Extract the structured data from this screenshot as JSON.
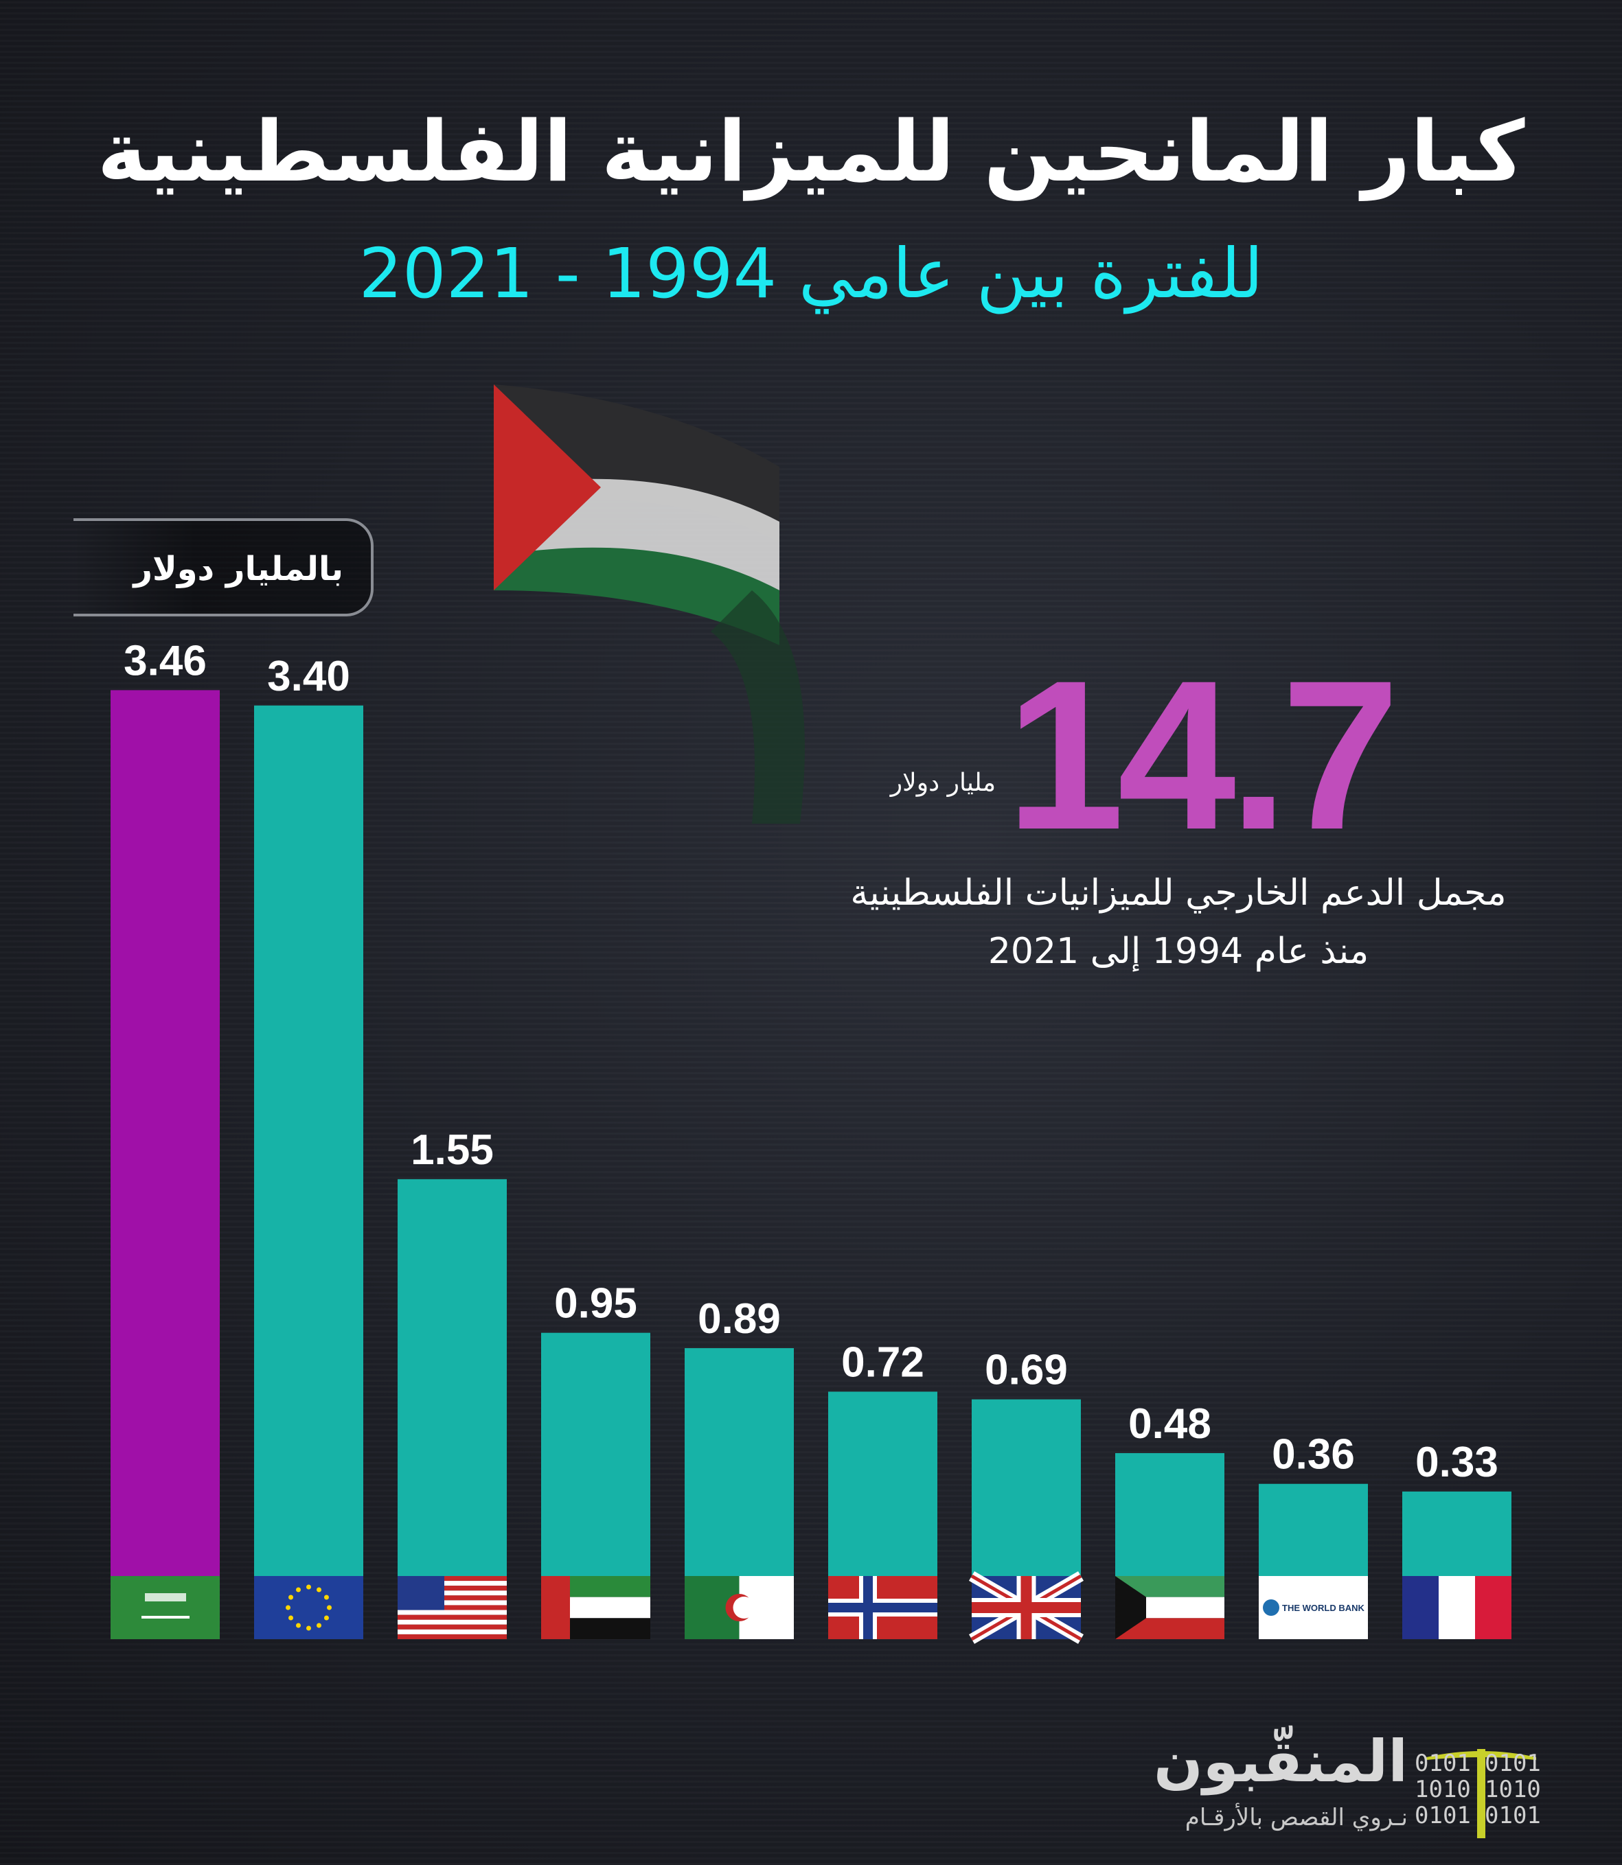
{
  "header": {
    "title": "كبار المانحين للميزانية الفلسطينية",
    "subtitle": "للفترة بين عامي 1994 - 2021"
  },
  "unit_label": "بالمليار دولار",
  "highlight": {
    "value": "14.7",
    "unit": "مليار دولار",
    "caption_line1": "مجمل الدعم الخارجي للميزانيات الفلسطينية",
    "caption_line2": "منذ عام 1994 إلى 2021",
    "color": "#c04dbb"
  },
  "chart_data": {
    "type": "bar",
    "values": [
      3.46,
      3.4,
      1.55,
      0.95,
      0.89,
      0.72,
      0.69,
      0.48,
      0.36,
      0.33
    ],
    "labels": [
      "3.46",
      "3.40",
      "1.55",
      "0.95",
      "0.89",
      "0.72",
      "0.69",
      "0.48",
      "0.36",
      "0.33"
    ],
    "flags": [
      "saudi-arabia-flag-icon",
      "eu-flag-icon",
      "usa-flag-icon",
      "uae-flag-icon",
      "algeria-flag-icon",
      "norway-flag-icon",
      "uk-flag-icon",
      "kuwait-flag-icon",
      "world-bank-logo-icon",
      "france-flag-icon"
    ],
    "world_bank_text": "THE WORLD BANK",
    "colors": [
      "#a010a8",
      "#17b3a7",
      "#17b3a7",
      "#17b3a7",
      "#17b3a7",
      "#17b3a7",
      "#17b3a7",
      "#17b3a7",
      "#17b3a7",
      "#17b3a7"
    ],
    "grid": false
  },
  "logo": {
    "name": "المنقّبون",
    "tagline": "نـروي القصص بالأرقـام",
    "binary": [
      "0101",
      "1010",
      "0101"
    ],
    "accent": "#c8d02a"
  }
}
